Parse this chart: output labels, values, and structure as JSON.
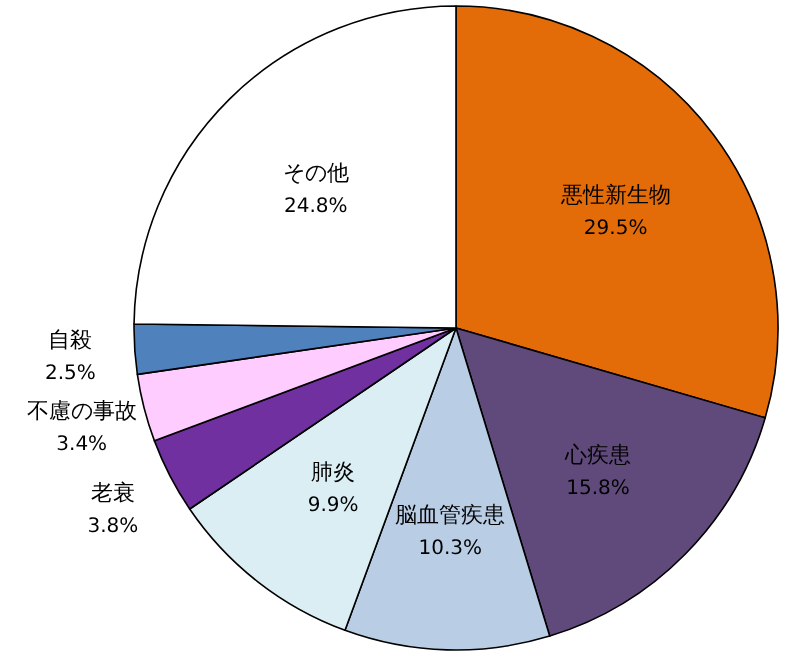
{
  "chart_data": {
    "type": "pie",
    "categories": [
      "悪性新生物",
      "心疾患",
      "脳血管疾患",
      "肺炎",
      "老衰",
      "不慮の事故",
      "自殺",
      "その他"
    ],
    "values": [
      29.5,
      15.8,
      10.3,
      9.9,
      3.8,
      3.4,
      2.5,
      24.8
    ],
    "colors": [
      "#e36c09",
      "#604a7b",
      "#b9cde5",
      "#dbeef4",
      "#7030a0",
      "#ffccff",
      "#4f81bd",
      "#ffffff"
    ],
    "value_labels": [
      "29.5%",
      "15.8%",
      "10.3%",
      "9.9%",
      "3.8%",
      "3.4%",
      "2.5%",
      "24.8%"
    ]
  }
}
